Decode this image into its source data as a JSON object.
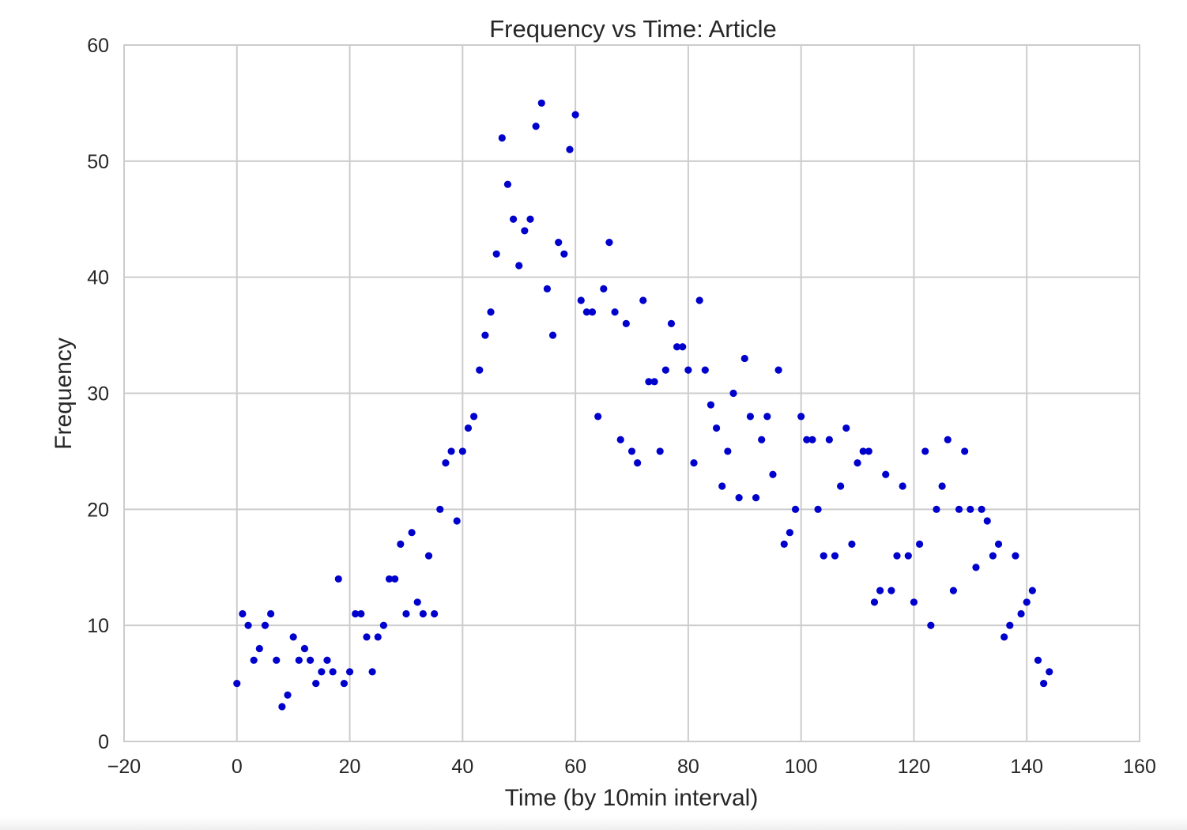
{
  "chart_data": {
    "type": "scatter",
    "title": "Frequency vs Time: Article",
    "xlabel": "Time (by 10min interval)",
    "ylabel": "Frequency",
    "xlim": [
      -20,
      160
    ],
    "ylim": [
      0,
      60
    ],
    "xticks": [
      -20,
      0,
      20,
      40,
      60,
      80,
      100,
      120,
      140,
      160
    ],
    "yticks": [
      0,
      10,
      20,
      30,
      40,
      50,
      60
    ],
    "xtick_labels": [
      "−20",
      "0",
      "20",
      "40",
      "60",
      "80",
      "100",
      "120",
      "140",
      "160"
    ],
    "ytick_labels": [
      "0",
      "10",
      "20",
      "30",
      "40",
      "50",
      "60"
    ],
    "grid": true,
    "marker_color": "#0000cc",
    "series": [
      {
        "x": [
          0,
          1,
          2,
          3,
          4,
          5,
          6,
          7,
          8,
          9,
          10,
          11,
          12,
          13,
          14,
          15,
          16,
          17,
          18,
          19,
          20,
          21,
          22,
          23,
          24,
          25,
          26,
          27,
          28,
          29,
          30,
          31,
          32,
          33,
          34,
          35,
          36,
          37,
          38,
          39,
          40,
          41,
          42,
          43,
          44,
          45,
          46,
          47,
          48,
          49,
          50,
          51,
          52,
          53,
          54,
          55,
          56,
          57,
          58,
          59,
          60,
          61,
          62,
          63,
          64,
          65,
          66,
          67,
          68,
          69,
          70,
          71,
          72,
          73,
          74,
          75,
          76,
          77,
          78,
          79,
          80,
          81,
          82,
          83,
          84,
          85,
          86,
          87,
          88,
          89,
          90,
          91,
          92,
          93,
          94,
          95,
          96,
          97,
          98,
          99,
          100,
          101,
          102,
          103,
          104,
          105,
          106,
          107,
          108,
          109,
          110,
          111,
          112,
          113,
          114,
          115,
          116,
          117,
          118,
          119,
          120,
          121,
          122,
          123,
          124,
          125,
          126,
          127,
          128,
          129,
          130,
          131,
          132,
          133,
          134,
          135,
          136,
          137,
          138,
          139,
          140,
          141,
          142,
          143,
          144
        ],
        "y": [
          5,
          11,
          10,
          7,
          8,
          10,
          11,
          7,
          3,
          4,
          9,
          7,
          8,
          7,
          5,
          6,
          7,
          6,
          14,
          5,
          6,
          11,
          11,
          9,
          6,
          9,
          10,
          14,
          14,
          17,
          11,
          18,
          12,
          11,
          16,
          11,
          20,
          24,
          25,
          19,
          25,
          27,
          28,
          32,
          35,
          37,
          42,
          52,
          48,
          45,
          41,
          44,
          45,
          53,
          55,
          39,
          35,
          43,
          42,
          51,
          54,
          38,
          37,
          37,
          28,
          39,
          43,
          37,
          26,
          36,
          25,
          24,
          38,
          31,
          31,
          25,
          32,
          36,
          34,
          34,
          32,
          24,
          38,
          32,
          29,
          27,
          22,
          25,
          30,
          21,
          33,
          28,
          21,
          26,
          28,
          23,
          32,
          17,
          18,
          20,
          28,
          26,
          26,
          20,
          16,
          26,
          16,
          22,
          27,
          17,
          24,
          25,
          25,
          12,
          13,
          23,
          13,
          16,
          22,
          16,
          12,
          17,
          25,
          10,
          20,
          22,
          26,
          13,
          20,
          25,
          20,
          15,
          20,
          19,
          16,
          17,
          9,
          10,
          16,
          11,
          12,
          13,
          7,
          5,
          6
        ]
      }
    ]
  }
}
